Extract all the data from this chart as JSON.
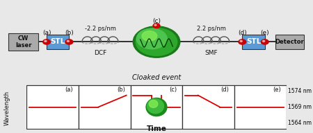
{
  "bg_color": "#e8e8e8",
  "top_bg": "#e8e8e8",
  "bottom_bg": "#ffffff",
  "cw_laser_label": "CW\nlaser",
  "stl_label": "STL",
  "dcf_label": "DCF",
  "smf_label": "SMF",
  "detector_label": "Detector",
  "cloaked_event_label": "Cloaked event",
  "time_label": "Time",
  "wavelength_label": "Wavelength",
  "dcf_dispersion": "-2.2 ps/nm",
  "smf_dispersion": "2.2 ps/nm",
  "node_labels": [
    "(a)",
    "(b)",
    "(c)",
    "(d)",
    "(e)"
  ],
  "wl_labels": [
    "1574 nm",
    "1569 nm",
    "1564 nm"
  ],
  "box_color_gray": "#aaaaaa",
  "box_color_blue": "#5b9bd5",
  "line_color": "#111111",
  "red_dot_color": "#cc0000",
  "signal_line_color": "#dd0000",
  "coil_color": "#555555"
}
